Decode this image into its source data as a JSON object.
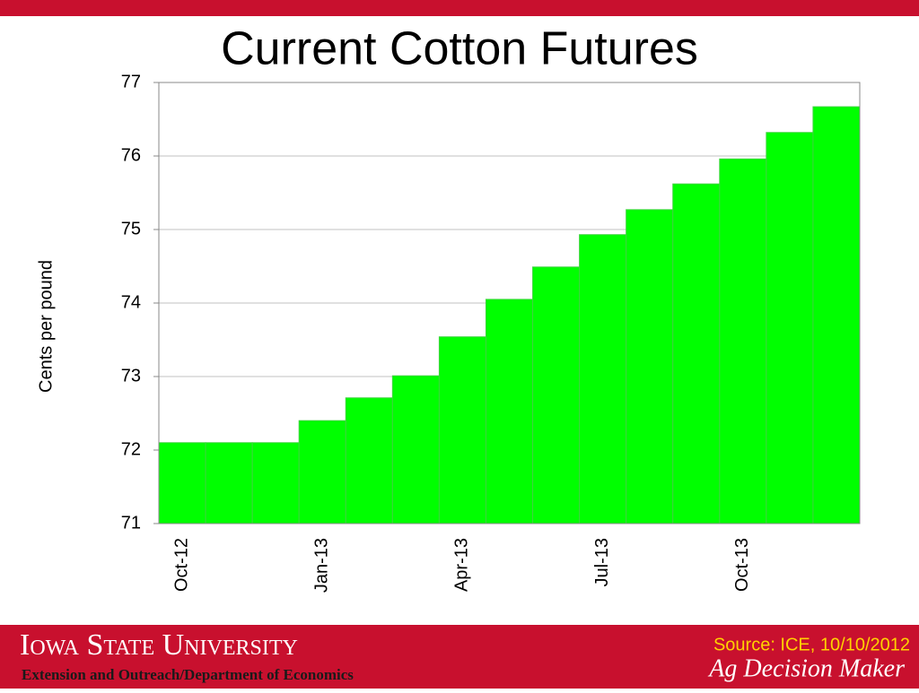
{
  "chart_data": {
    "type": "bar",
    "title": "Current Cotton Futures",
    "y_label": "Cents per pound",
    "categories": [
      "Oct-12",
      null,
      null,
      "Jan-13",
      null,
      null,
      "Apr-13",
      null,
      null,
      "Jul-13",
      null,
      null,
      "Oct-13",
      null,
      null
    ],
    "values": [
      72.1,
      72.1,
      72.1,
      72.4,
      72.71,
      73.01,
      73.54,
      74.05,
      74.49,
      74.93,
      75.27,
      75.62,
      75.96,
      76.32,
      76.67
    ],
    "color": "#00ff00",
    "ylim": [
      71,
      77
    ],
    "yticks": [
      71,
      72,
      73,
      74,
      75,
      76,
      77
    ],
    "grid": true
  },
  "footer": {
    "university": "Iowa State University",
    "department": "Extension and Outreach/Department of Economics",
    "source": "Source: ICE, 10/10/2012",
    "brand": "Ag Decision Maker"
  }
}
